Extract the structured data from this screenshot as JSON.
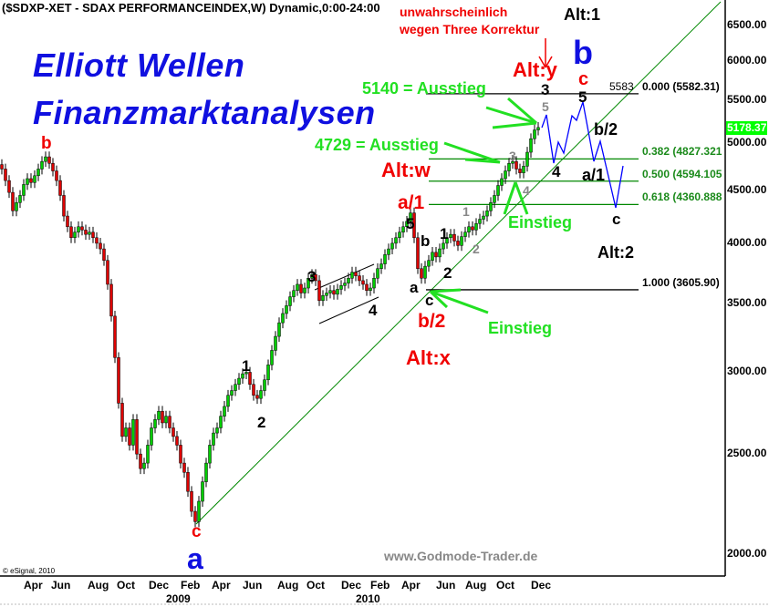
{
  "title": "($SDXP-XET - SDAX PERFORMANCEINDEX,W) Dynamic,0:00-24:00",
  "brand": {
    "line1": "Elliott Wellen",
    "line2": "Finanzmarktanalysen",
    "website": "www.Godmode-Trader.de",
    "copyright": "© eSignal, 2010"
  },
  "colors": {
    "up": "#00cc00",
    "down": "#dd0000",
    "trendline": "#008800",
    "projection": "#0000ff",
    "fib": "#008800",
    "last_price_badge": "#00ff00"
  },
  "last_price": "5178.37",
  "annotations": {
    "note1": "unwahrscheinlich",
    "note2": "wegen Three Korrektur",
    "alt1": "Alt:1",
    "alty": "Alt:y",
    "altw": "Alt:w",
    "altx": "Alt:x",
    "alt2": "Alt:2",
    "exit1": "5140 = Ausstieg",
    "exit2": "4729 = Ausstieg",
    "entry1": "Einstieg",
    "entry2": "Einstieg",
    "b_blue": "b",
    "c_red_top": "c",
    "three_top": "3",
    "five_gray_top": "5",
    "five_top": "5",
    "b2_proj": "b/2",
    "four_proj": "4",
    "a1_proj": "a/1",
    "c_proj": "c",
    "three_gray": "3",
    "four_gray": "4",
    "one_gray": "1",
    "two_gray": "2",
    "a1_red": "a/1",
    "five_mid": "5",
    "b_mid": "b",
    "one_mid": "1",
    "two_mid": "2",
    "a_mid": "a",
    "c_mid": "c",
    "b2_red": "b/2",
    "three_left": "3",
    "four_left": "4",
    "one_left": "1",
    "two_left": "2",
    "b_red_left": "b",
    "c_red_bottom": "c",
    "a_blue_bottom": "a",
    "fib_0_extra": "5583"
  },
  "chart_data": {
    "type": "candlestick",
    "title": "($SDXP-XET - SDAX PERFORMANCEINDEX,W) Dynamic,0:00-24:00",
    "yscale": "log",
    "ylim": [
      1900,
      6900
    ],
    "y_ticks": [
      "6500.00",
      "6000.00",
      "5500.00",
      "5000.00",
      "4500.00",
      "4000.00",
      "3500.00",
      "3000.00",
      "2500.00",
      "2000.00"
    ],
    "y_tick_values": [
      6500,
      6000,
      5500,
      5000,
      4500,
      4000,
      3500,
      3000,
      2500,
      2000
    ],
    "x_ticks": [
      "Apr",
      "Jun",
      "Aug",
      "Oct",
      "Dec",
      "Feb",
      "Apr",
      "Jun",
      "Aug",
      "Oct",
      "Dec",
      "Feb",
      "Apr",
      "Jun",
      "Aug",
      "Oct",
      "Dec"
    ],
    "x_years": [
      "2009",
      "2010"
    ],
    "grid": false,
    "weekly_closes": [
      4720,
      4600,
      4480,
      4300,
      4380,
      4450,
      4560,
      4620,
      4580,
      4650,
      4720,
      4800,
      4850,
      4780,
      4700,
      4600,
      4450,
      4250,
      4150,
      4050,
      4100,
      4150,
      4120,
      4080,
      4100,
      4050,
      4000,
      3950,
      3850,
      3650,
      3400,
      3100,
      2800,
      2600,
      2650,
      2550,
      2700,
      2500,
      2420,
      2450,
      2550,
      2650,
      2700,
      2750,
      2680,
      2720,
      2650,
      2600,
      2550,
      2450,
      2400,
      2300,
      2200,
      2150,
      2250,
      2350,
      2450,
      2550,
      2620,
      2650,
      2720,
      2780,
      2850,
      2880,
      2920,
      2960,
      2990,
      3000,
      2920,
      2850,
      2830,
      2880,
      2950,
      3050,
      3150,
      3250,
      3350,
      3420,
      3480,
      3550,
      3600,
      3650,
      3580,
      3620,
      3700,
      3730,
      3680,
      3520,
      3560,
      3580,
      3600,
      3570,
      3610,
      3640,
      3660,
      3700,
      3750,
      3720,
      3680,
      3650,
      3600,
      3620,
      3700,
      3780,
      3820,
      3900,
      3950,
      4000,
      4050,
      4100,
      4150,
      4200,
      4280,
      4050,
      3780,
      3700,
      3800,
      3850,
      3920,
      3880,
      3950,
      4000,
      4050,
      4080,
      4020,
      3980,
      4060,
      4100,
      4150,
      4120,
      4180,
      4220,
      4250,
      4300,
      4380,
      4450,
      4550,
      4620,
      4700,
      4780,
      4800,
      4720,
      4680,
      4750,
      4900,
      5050,
      5150,
      5178
    ],
    "fibonacci": [
      {
        "ratio": "0.000",
        "value": 5582.31,
        "label": "0.000 (5582.31)"
      },
      {
        "ratio": "0.382",
        "value": 4827.32,
        "label": "0.382 (4827.321"
      },
      {
        "ratio": "0.500",
        "value": 4594.105,
        "label": "0.500 (4594.105"
      },
      {
        "ratio": "0.618",
        "value": 4360.888,
        "label": "0.618 (4360.888"
      },
      {
        "ratio": "1.000",
        "value": 3605.9,
        "label": "1.000 (3605.90)"
      }
    ]
  }
}
